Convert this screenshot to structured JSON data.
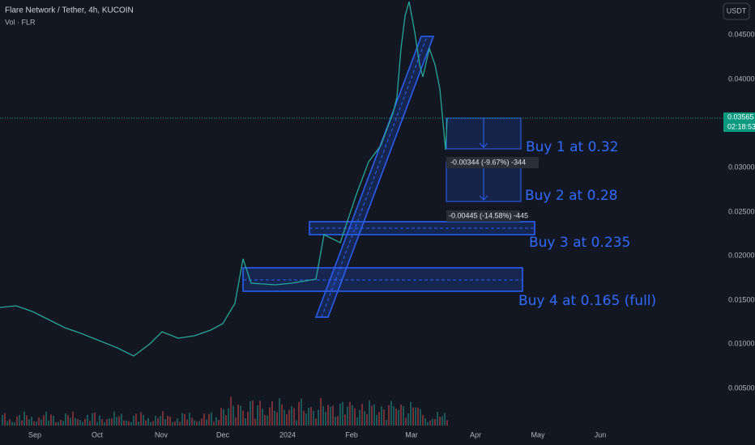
{
  "header": {
    "symbol": "Flare Network / Tether, 4h, KUCOIN",
    "volume_label": "Vol · FLR",
    "currency": "USDT"
  },
  "price_axis": {
    "labels": [
      "0.04500",
      "0.04000",
      "0.03000",
      "0.02500",
      "0.02000",
      "0.01500",
      "0.01000",
      "0.00500"
    ]
  },
  "current_price": {
    "price": "0.03565",
    "countdown": "02:18:53"
  },
  "time_axis": {
    "labels": [
      "Sep",
      "Oct",
      "Nov",
      "Dec",
      "2024",
      "Feb",
      "Mar",
      "Apr",
      "May",
      "Jun"
    ]
  },
  "annotations": [
    "Buy 1 at 0.32",
    "Buy 2 at 0.28",
    "Buy 3 at 0.235",
    "Buy 4 at 0.165 (full)"
  ],
  "measurements": [
    "-0.00344 (-9.67%) -344",
    "-0.00445 (-14.58%) -445"
  ]
}
